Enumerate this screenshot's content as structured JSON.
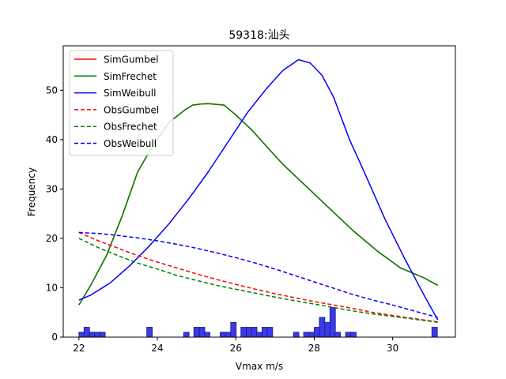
{
  "chart_data": {
    "type": "line",
    "title": "59318:汕头",
    "xlabel": "Vmax m/s",
    "ylabel": "Frequency",
    "xlim": [
      21.6,
      31.6
    ],
    "ylim": [
      0,
      59
    ],
    "xticks": [
      22,
      24,
      26,
      28,
      30
    ],
    "xtick_labels": [
      "22",
      "24",
      "26",
      "28",
      "30"
    ],
    "yticks": [
      0,
      10,
      20,
      30,
      40,
      50
    ],
    "ytick_labels": [
      "0",
      "10",
      "20",
      "30",
      "40",
      "50"
    ],
    "legend_position": "top-left",
    "series": [
      {
        "name": "SimGumbel",
        "color": "#ff0000",
        "style": "solid",
        "x": [
          22.0,
          22.3,
          22.7,
          23.1,
          23.5,
          23.9,
          24.3,
          24.7,
          24.9,
          25.1,
          25.3,
          25.7,
          26.0,
          26.4,
          26.8,
          27.2,
          27.8,
          28.4,
          29.0,
          29.6,
          30.2,
          30.8,
          31.15
        ],
        "y": [
          6.5,
          10.5,
          16.5,
          24.5,
          33.5,
          39.0,
          43.5,
          46.0,
          47.0,
          47.2,
          47.3,
          47.0,
          45.0,
          42.0,
          38.5,
          35.0,
          30.5,
          26.0,
          21.5,
          17.5,
          14.0,
          12.0,
          10.5
        ]
      },
      {
        "name": "SimFrechet",
        "color": "#008000",
        "style": "solid",
        "x": [
          22.0,
          22.3,
          22.7,
          23.1,
          23.5,
          23.9,
          24.3,
          24.7,
          24.9,
          25.1,
          25.3,
          25.7,
          26.0,
          26.4,
          26.8,
          27.2,
          27.8,
          28.4,
          29.0,
          29.6,
          30.2,
          30.8,
          31.15
        ],
        "y": [
          6.5,
          10.5,
          16.5,
          24.5,
          33.5,
          39.0,
          43.5,
          46.0,
          47.0,
          47.2,
          47.3,
          47.0,
          45.0,
          42.0,
          38.5,
          35.0,
          30.5,
          26.0,
          21.5,
          17.5,
          14.0,
          12.0,
          10.5
        ]
      },
      {
        "name": "SimWeibull",
        "color": "#0000ff",
        "style": "solid",
        "x": [
          22.0,
          22.3,
          22.8,
          23.3,
          23.8,
          24.3,
          24.8,
          25.3,
          25.8,
          26.3,
          26.8,
          27.2,
          27.6,
          27.9,
          28.2,
          28.5,
          28.9,
          29.3,
          29.8,
          30.3,
          30.8,
          31.15
        ],
        "y": [
          7.5,
          8.5,
          11.0,
          14.5,
          18.5,
          23.0,
          28.0,
          33.5,
          39.5,
          45.5,
          50.5,
          54.0,
          56.2,
          55.5,
          53.0,
          48.5,
          40.0,
          33.0,
          24.0,
          16.0,
          8.5,
          3.5
        ]
      },
      {
        "name": "ObsGumbel",
        "color": "#ff0000",
        "style": "dashed",
        "x": [
          22.0,
          22.5,
          23.0,
          23.5,
          24.0,
          24.5,
          25.0,
          25.5,
          26.0,
          26.5,
          27.0,
          27.5,
          28.0,
          28.5,
          29.0,
          29.5,
          30.0,
          30.5,
          31.15
        ],
        "y": [
          21.2,
          19.5,
          18.0,
          16.5,
          15.2,
          14.0,
          12.8,
          11.7,
          10.7,
          9.7,
          8.8,
          8.0,
          7.2,
          6.5,
          5.8,
          5.0,
          4.4,
          3.8,
          3.1
        ]
      },
      {
        "name": "ObsFrechet",
        "color": "#008000",
        "style": "dashed",
        "x": [
          22.0,
          22.5,
          23.0,
          23.5,
          24.0,
          24.5,
          25.0,
          25.5,
          26.0,
          26.5,
          27.0,
          27.5,
          28.0,
          28.5,
          29.0,
          29.5,
          30.0,
          30.5,
          31.15
        ],
        "y": [
          20.0,
          18.1,
          16.5,
          15.0,
          13.8,
          12.5,
          11.5,
          10.5,
          9.7,
          8.9,
          8.1,
          7.4,
          6.7,
          6.0,
          5.3,
          4.7,
          4.2,
          3.7,
          3.0
        ]
      },
      {
        "name": "ObsWeibull",
        "color": "#0000ff",
        "style": "dashed",
        "x": [
          22.0,
          22.5,
          23.0,
          23.5,
          24.0,
          24.5,
          25.0,
          25.5,
          26.0,
          26.5,
          27.0,
          27.5,
          28.0,
          28.5,
          29.0,
          29.5,
          30.0,
          30.5,
          31.15
        ],
        "y": [
          21.2,
          21.0,
          20.6,
          20.1,
          19.5,
          18.8,
          18.0,
          17.1,
          16.1,
          15.0,
          13.8,
          12.5,
          11.2,
          9.9,
          8.6,
          7.5,
          6.5,
          5.4,
          4.0
        ]
      }
    ],
    "histogram": {
      "color": "#3a3ae8",
      "edge": "#1a1a80",
      "bin_width": 0.14,
      "bins": [
        {
          "x": 22.0,
          "count": 1
        },
        {
          "x": 22.13,
          "count": 2
        },
        {
          "x": 22.27,
          "count": 1
        },
        {
          "x": 22.4,
          "count": 1
        },
        {
          "x": 22.53,
          "count": 1
        },
        {
          "x": 23.73,
          "count": 2
        },
        {
          "x": 24.67,
          "count": 1
        },
        {
          "x": 24.93,
          "count": 2
        },
        {
          "x": 25.07,
          "count": 2
        },
        {
          "x": 25.2,
          "count": 1
        },
        {
          "x": 25.6,
          "count": 1
        },
        {
          "x": 25.73,
          "count": 1
        },
        {
          "x": 25.87,
          "count": 3
        },
        {
          "x": 26.13,
          "count": 2
        },
        {
          "x": 26.27,
          "count": 2
        },
        {
          "x": 26.4,
          "count": 2
        },
        {
          "x": 26.53,
          "count": 1
        },
        {
          "x": 26.67,
          "count": 2
        },
        {
          "x": 26.8,
          "count": 2
        },
        {
          "x": 27.47,
          "count": 1
        },
        {
          "x": 27.73,
          "count": 1
        },
        {
          "x": 27.87,
          "count": 1
        },
        {
          "x": 28.0,
          "count": 2
        },
        {
          "x": 28.13,
          "count": 4
        },
        {
          "x": 28.27,
          "count": 3
        },
        {
          "x": 28.4,
          "count": 6
        },
        {
          "x": 28.53,
          "count": 1
        },
        {
          "x": 28.8,
          "count": 1
        },
        {
          "x": 28.93,
          "count": 1
        },
        {
          "x": 31.0,
          "count": 2
        }
      ]
    }
  }
}
